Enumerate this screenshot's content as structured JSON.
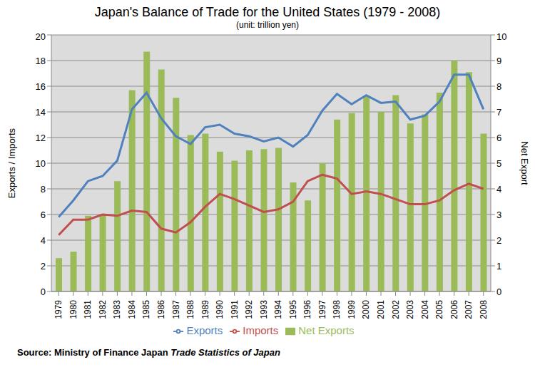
{
  "chart_data": {
    "type": "bar",
    "title": "Japan's Balance of Trade for the United States (1979 - 2008)",
    "subtitle": "(unit: trillion yen)",
    "source": "Source: Ministry of Finance Japan",
    "source_title": "Trade Statistics of Japan",
    "y_label": "Exports / Imports",
    "y2_label": "Net Export",
    "categories": [
      "1979",
      "1980",
      "1981",
      "1982",
      "1983",
      "1984",
      "1985",
      "1986",
      "1987",
      "1988",
      "1989",
      "1990",
      "1991",
      "1992",
      "1993",
      "1994",
      "1995",
      "1996",
      "1997",
      "1998",
      "1999",
      "2000",
      "2001",
      "2002",
      "2003",
      "2004",
      "2005",
      "2006",
      "2007",
      "2008"
    ],
    "series": [
      {
        "name": "Net Exports",
        "type": "bar",
        "axis": "y2",
        "color": "#9bbb59",
        "values": [
          1.3,
          1.55,
          2.95,
          3.0,
          4.3,
          7.85,
          9.35,
          8.65,
          7.55,
          6.1,
          6.15,
          5.45,
          5.1,
          5.5,
          5.55,
          5.6,
          4.25,
          3.55,
          5.0,
          6.7,
          6.95,
          7.6,
          7.0,
          7.65,
          6.55,
          6.9,
          7.75,
          9.0,
          8.55,
          6.15
        ]
      },
      {
        "name": "Exports",
        "type": "line",
        "color": "#4f81bd",
        "values": [
          5.8,
          7.1,
          8.6,
          9.0,
          10.2,
          14.2,
          15.5,
          13.5,
          12.1,
          11.5,
          12.8,
          13.0,
          12.3,
          12.1,
          11.7,
          12.0,
          11.3,
          12.2,
          14.1,
          15.4,
          14.6,
          15.3,
          14.7,
          14.8,
          13.4,
          13.7,
          14.8,
          16.9,
          16.9,
          14.2
        ]
      },
      {
        "name": "Imports",
        "type": "line",
        "color": "#c0504d",
        "values": [
          4.4,
          5.6,
          5.6,
          6.0,
          5.9,
          6.3,
          6.2,
          4.9,
          4.6,
          5.4,
          6.6,
          7.6,
          7.2,
          6.7,
          6.2,
          6.4,
          7.0,
          8.6,
          9.1,
          8.8,
          7.6,
          7.8,
          7.6,
          7.2,
          6.8,
          6.8,
          7.1,
          7.9,
          8.4,
          8.0
        ]
      }
    ],
    "ylim": [
      0,
      20
    ],
    "yticks": [
      0,
      2,
      4,
      6,
      8,
      10,
      12,
      14,
      16,
      18,
      20
    ],
    "y2lim": [
      0,
      10
    ],
    "y2ticks": [
      0,
      1,
      2,
      3,
      4,
      5,
      6,
      7,
      8,
      9,
      10
    ],
    "grid": true,
    "legend": "bottom"
  }
}
